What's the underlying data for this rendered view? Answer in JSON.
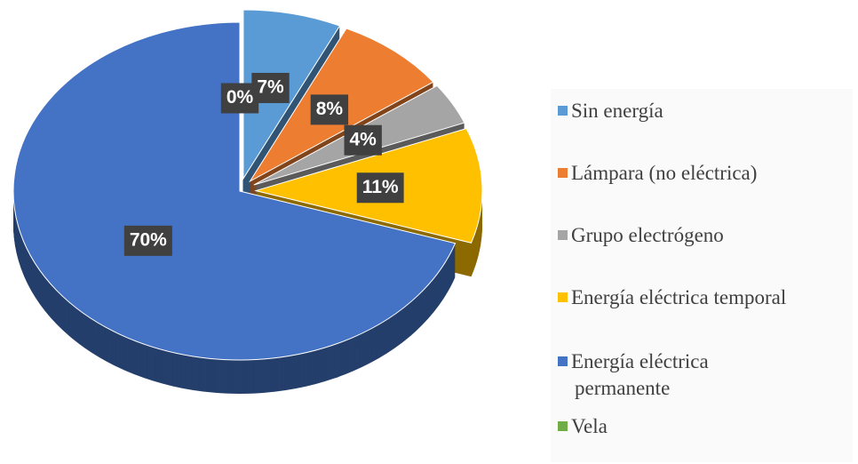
{
  "chart_data": {
    "type": "pie",
    "categories": [
      "Sin energía",
      "Lámpara (no eléctrica)",
      "Grupo electrógeno",
      "Energía eléctrica temporal",
      "Energía eléctrica permanente",
      "Vela"
    ],
    "values": [
      7,
      8,
      4,
      11,
      70,
      0
    ],
    "value_labels": [
      "7%",
      "8%",
      "4%",
      "11%",
      "70%",
      "0%"
    ],
    "colors": [
      "#5b9bd5",
      "#ed7d31",
      "#a5a5a5",
      "#ffc000",
      "#4472c4",
      "#70ad47"
    ],
    "legend": "right"
  }
}
